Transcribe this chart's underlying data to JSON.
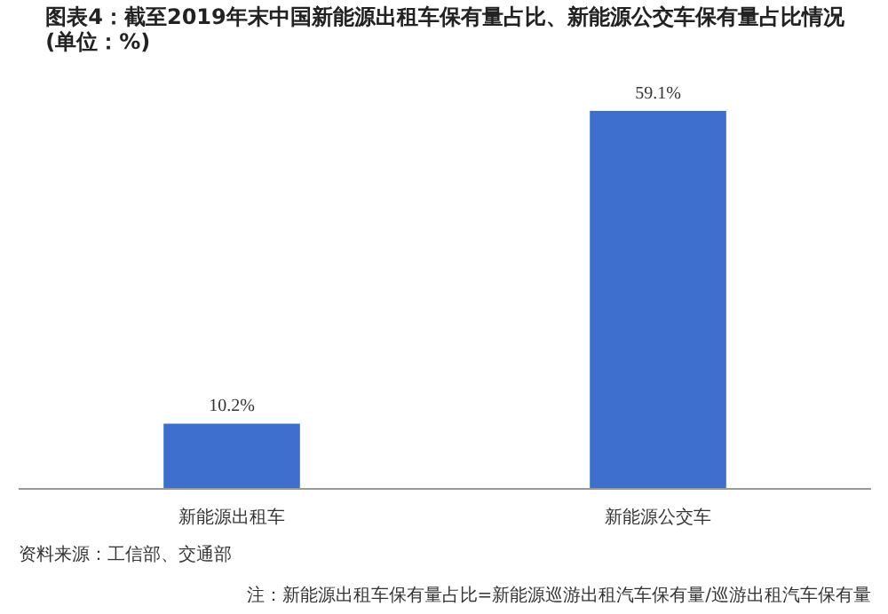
{
  "chart_data": {
    "type": "bar",
    "title": "图表4：截至2019年末中国新能源出租车保有量占比、新能源公交车保有量占比情况(单位：%)",
    "categories": [
      "新能源出租车",
      "新能源公交车"
    ],
    "values": [
      10.2,
      59.1
    ],
    "value_labels": [
      "10.2%",
      "59.1%"
    ],
    "color": "#3f6fce",
    "grid": false,
    "annotations": [
      "注：新能源出租车保有量占比=新能源巡游出租汽车保有量/巡游出租汽车保有量",
      "资料来源：工信部、交通部"
    ]
  }
}
